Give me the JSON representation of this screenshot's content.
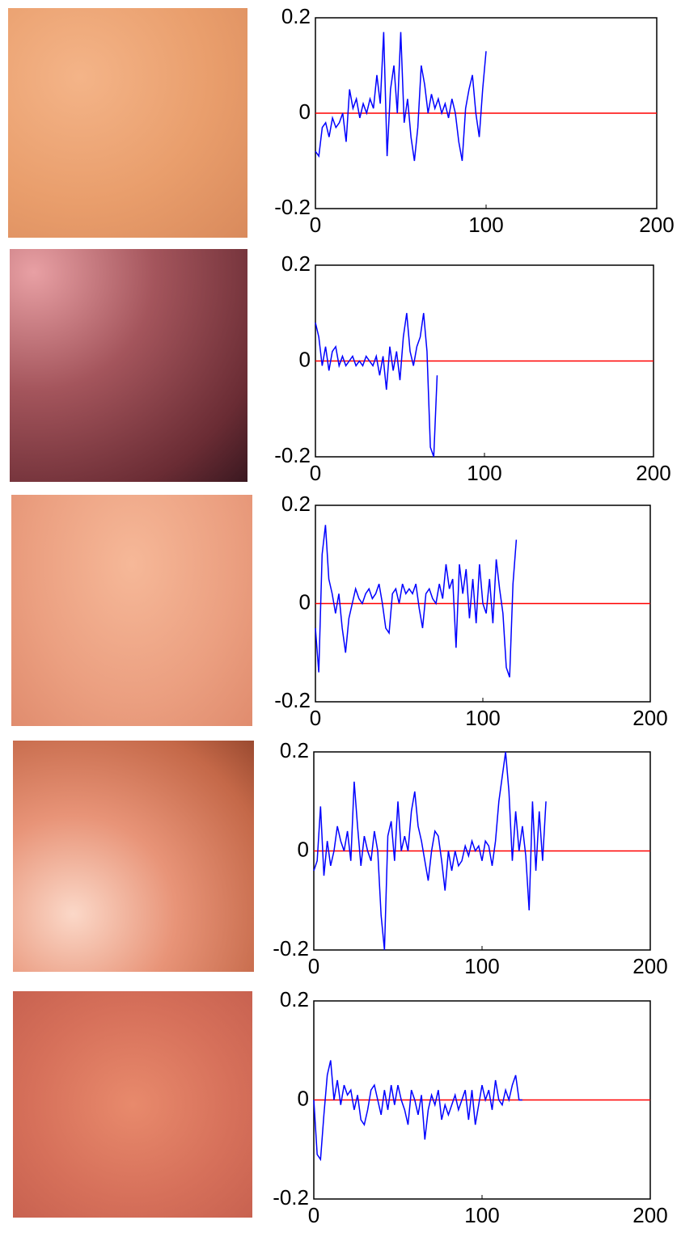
{
  "chart_data": [
    {
      "type": "line",
      "xlim": [
        0,
        200
      ],
      "ylim": [
        -0.2,
        0.2
      ],
      "xticks": [
        0,
        100,
        200
      ],
      "yticks": [
        -0.2,
        0,
        0.2
      ],
      "hline": {
        "value": 0,
        "color": "#ff0000"
      },
      "x": [
        0,
        2,
        4,
        6,
        8,
        10,
        12,
        14,
        16,
        18,
        20,
        22,
        24,
        26,
        28,
        30,
        32,
        34,
        36,
        38,
        40,
        42,
        44,
        46,
        48,
        50,
        52,
        54,
        56,
        58,
        60,
        62,
        64,
        66,
        68,
        70,
        72,
        74,
        76,
        78,
        80,
        82,
        84,
        86,
        88,
        90,
        92,
        94,
        96,
        98,
        100
      ],
      "series": [
        {
          "color": "#0000ff",
          "values": [
            -0.08,
            -0.09,
            -0.03,
            -0.02,
            -0.05,
            -0.01,
            -0.03,
            -0.02,
            0.0,
            -0.06,
            0.05,
            0.01,
            0.03,
            -0.01,
            0.02,
            0.0,
            0.03,
            0.01,
            0.08,
            0.02,
            0.17,
            -0.09,
            0.05,
            0.1,
            0.0,
            0.17,
            -0.02,
            0.03,
            -0.05,
            -0.1,
            -0.03,
            0.1,
            0.06,
            0.0,
            0.04,
            0.01,
            0.03,
            0.0,
            0.02,
            -0.01,
            0.03,
            0.0,
            -0.06,
            -0.1,
            0.01,
            0.05,
            0.08,
            0.0,
            -0.05,
            0.05,
            0.13
          ]
        }
      ]
    },
    {
      "type": "line",
      "xlim": [
        0,
        200
      ],
      "ylim": [
        -0.2,
        0.2
      ],
      "xticks": [
        0,
        100,
        200
      ],
      "yticks": [
        -0.2,
        0,
        0.2
      ],
      "hline": {
        "value": 0,
        "color": "#ff0000"
      },
      "x": [
        0,
        2,
        4,
        6,
        8,
        10,
        12,
        14,
        16,
        18,
        20,
        22,
        24,
        26,
        28,
        30,
        32,
        34,
        36,
        38,
        40,
        42,
        44,
        46,
        48,
        50,
        52,
        54,
        56,
        58,
        60,
        62,
        64,
        66,
        68,
        70,
        72
      ],
      "series": [
        {
          "color": "#0000ff",
          "values": [
            0.08,
            0.05,
            -0.01,
            0.03,
            -0.02,
            0.02,
            0.03,
            -0.01,
            0.01,
            -0.01,
            0.0,
            0.01,
            -0.01,
            0.0,
            -0.01,
            0.01,
            0.0,
            -0.01,
            0.01,
            -0.03,
            0.01,
            -0.06,
            0.03,
            -0.02,
            0.02,
            -0.04,
            0.05,
            0.1,
            0.02,
            -0.01,
            0.03,
            0.05,
            0.1,
            0.02,
            -0.18,
            -0.2,
            -0.03
          ]
        }
      ]
    },
    {
      "type": "line",
      "xlim": [
        0,
        200
      ],
      "ylim": [
        -0.2,
        0.2
      ],
      "xticks": [
        0,
        100,
        200
      ],
      "yticks": [
        -0.2,
        0,
        0.2
      ],
      "hline": {
        "value": 0,
        "color": "#ff0000"
      },
      "x": [
        0,
        2,
        4,
        6,
        8,
        10,
        12,
        14,
        16,
        18,
        20,
        22,
        24,
        26,
        28,
        30,
        32,
        34,
        36,
        38,
        40,
        42,
        44,
        46,
        48,
        50,
        52,
        54,
        56,
        58,
        60,
        62,
        64,
        66,
        68,
        70,
        72,
        74,
        76,
        78,
        80,
        82,
        84,
        86,
        88,
        90,
        92,
        94,
        96,
        98,
        100,
        102,
        104,
        106,
        108,
        110,
        112,
        114,
        116,
        118,
        120
      ],
      "series": [
        {
          "color": "#0000ff",
          "values": [
            -0.05,
            -0.14,
            0.1,
            0.16,
            0.05,
            0.02,
            -0.02,
            0.02,
            -0.05,
            -0.1,
            -0.03,
            0.0,
            0.03,
            0.01,
            0.0,
            0.02,
            0.03,
            0.01,
            0.02,
            0.04,
            0.0,
            -0.05,
            -0.06,
            0.02,
            0.03,
            0.0,
            0.04,
            0.02,
            0.03,
            0.02,
            0.04,
            -0.01,
            -0.05,
            0.02,
            0.03,
            0.01,
            0.0,
            0.04,
            0.01,
            0.08,
            0.03,
            0.05,
            -0.09,
            0.08,
            0.02,
            0.07,
            -0.03,
            0.05,
            -0.04,
            0.08,
            0.0,
            -0.02,
            0.05,
            -0.04,
            0.09,
            0.03,
            -0.02,
            -0.13,
            -0.15,
            0.04,
            0.13
          ]
        }
      ]
    },
    {
      "type": "line",
      "xlim": [
        0,
        200
      ],
      "ylim": [
        -0.2,
        0.2
      ],
      "xticks": [
        0,
        100,
        200
      ],
      "yticks": [
        -0.2,
        0,
        0.2
      ],
      "hline": {
        "value": 0,
        "color": "#ff0000"
      },
      "x": [
        0,
        2,
        4,
        6,
        8,
        10,
        12,
        14,
        16,
        18,
        20,
        22,
        24,
        26,
        28,
        30,
        32,
        34,
        36,
        38,
        40,
        42,
        44,
        46,
        48,
        50,
        52,
        54,
        56,
        58,
        60,
        62,
        64,
        66,
        68,
        70,
        72,
        74,
        76,
        78,
        80,
        82,
        84,
        86,
        88,
        90,
        92,
        94,
        96,
        98,
        100,
        102,
        104,
        106,
        108,
        110,
        112,
        114,
        116,
        118,
        120,
        122,
        124,
        126,
        128,
        130,
        132,
        134,
        136,
        138
      ],
      "series": [
        {
          "color": "#0000ff",
          "values": [
            -0.04,
            -0.02,
            0.09,
            -0.05,
            0.02,
            -0.03,
            0.0,
            0.05,
            0.02,
            0.0,
            0.04,
            -0.02,
            0.14,
            0.05,
            -0.03,
            0.03,
            0.0,
            -0.02,
            0.04,
            0.0,
            -0.13,
            -0.2,
            0.03,
            0.06,
            -0.02,
            0.1,
            0.0,
            0.03,
            0.0,
            0.08,
            0.12,
            0.05,
            0.02,
            -0.02,
            -0.06,
            0.0,
            0.04,
            0.03,
            -0.02,
            -0.08,
            0.0,
            -0.04,
            0.0,
            -0.03,
            -0.02,
            0.01,
            -0.01,
            0.02,
            0.0,
            0.01,
            -0.02,
            0.02,
            0.01,
            -0.03,
            0.02,
            0.1,
            0.15,
            0.2,
            0.12,
            -0.02,
            0.08,
            0.0,
            0.05,
            -0.01,
            -0.12,
            0.1,
            -0.04,
            0.08,
            -0.02,
            0.1
          ]
        }
      ]
    },
    {
      "type": "line",
      "xlim": [
        0,
        200
      ],
      "ylim": [
        -0.2,
        0.2
      ],
      "xticks": [
        0,
        100,
        200
      ],
      "yticks": [
        -0.2,
        0,
        0.2
      ],
      "hline": {
        "value": 0,
        "color": "#ff0000"
      },
      "x": [
        0,
        2,
        4,
        6,
        8,
        10,
        12,
        14,
        16,
        18,
        20,
        22,
        24,
        26,
        28,
        30,
        32,
        34,
        36,
        38,
        40,
        42,
        44,
        46,
        48,
        50,
        52,
        54,
        56,
        58,
        60,
        62,
        64,
        66,
        68,
        70,
        72,
        74,
        76,
        78,
        80,
        82,
        84,
        86,
        88,
        90,
        92,
        94,
        96,
        98,
        100,
        102,
        104,
        106,
        108,
        110,
        112,
        114,
        116,
        118,
        120,
        122,
        124
      ],
      "series": [
        {
          "color": "#0000ff",
          "values": [
            0.0,
            -0.11,
            -0.12,
            -0.03,
            0.05,
            0.08,
            0.0,
            0.04,
            -0.01,
            0.03,
            0.01,
            0.02,
            -0.02,
            0.01,
            -0.04,
            -0.05,
            -0.02,
            0.02,
            0.03,
            0.0,
            -0.03,
            0.02,
            -0.02,
            0.03,
            -0.01,
            0.03,
            0.0,
            -0.02,
            -0.05,
            0.02,
            0.0,
            -0.03,
            0.01,
            -0.08,
            -0.02,
            0.01,
            -0.01,
            0.02,
            -0.04,
            -0.01,
            -0.03,
            -0.01,
            0.01,
            -0.02,
            0.0,
            0.02,
            -0.04,
            0.02,
            -0.05,
            -0.01,
            0.03,
            0.0,
            0.02,
            -0.02,
            0.04,
            0.0,
            -0.01,
            0.02,
            0.0,
            0.03,
            0.05,
            0.0,
            0.0
          ]
        }
      ]
    }
  ]
}
